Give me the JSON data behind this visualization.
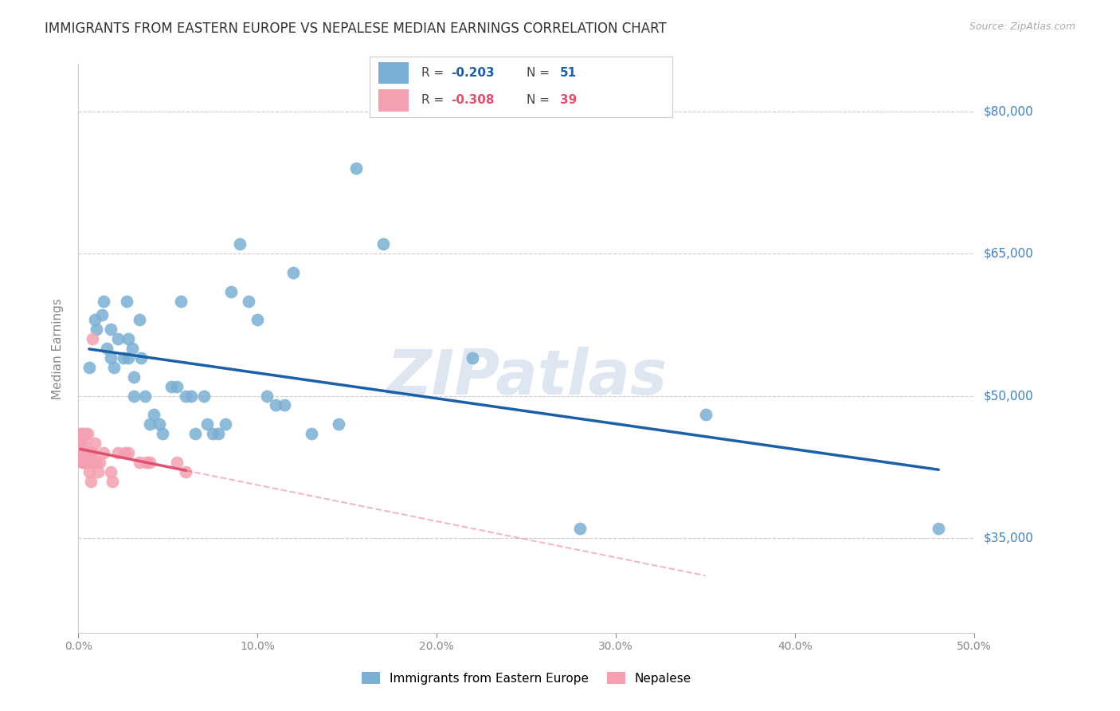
{
  "title": "IMMIGRANTS FROM EASTERN EUROPE VS NEPALESE MEDIAN EARNINGS CORRELATION CHART",
  "source": "Source: ZipAtlas.com",
  "ylabel": "Median Earnings",
  "xlim": [
    0.0,
    0.5
  ],
  "ylim": [
    25000,
    85000
  ],
  "yticks": [
    35000,
    50000,
    65000,
    80000
  ],
  "ytick_labels": [
    "$35,000",
    "$50,000",
    "$65,000",
    "$80,000"
  ],
  "xticks": [
    0.0,
    0.1,
    0.2,
    0.3,
    0.4,
    0.5
  ],
  "blue_R": "-0.203",
  "blue_N": "51",
  "pink_R": "-0.308",
  "pink_N": "39",
  "legend_label_blue": "Immigrants from Eastern Europe",
  "legend_label_pink": "Nepalese",
  "blue_color": "#7bafd4",
  "pink_color": "#f4a0b0",
  "blue_line_color": "#1a5fa8",
  "pink_line_color": "#e05070",
  "watermark": "ZIPatlas",
  "blue_x": [
    0.006,
    0.009,
    0.01,
    0.013,
    0.014,
    0.016,
    0.018,
    0.018,
    0.02,
    0.022,
    0.025,
    0.027,
    0.028,
    0.028,
    0.03,
    0.031,
    0.031,
    0.034,
    0.035,
    0.037,
    0.04,
    0.042,
    0.045,
    0.047,
    0.052,
    0.055,
    0.057,
    0.06,
    0.063,
    0.065,
    0.07,
    0.072,
    0.075,
    0.078,
    0.082,
    0.085,
    0.09,
    0.095,
    0.1,
    0.105,
    0.11,
    0.115,
    0.12,
    0.13,
    0.145,
    0.155,
    0.17,
    0.22,
    0.28,
    0.35,
    0.48
  ],
  "blue_y": [
    53000,
    58000,
    57000,
    58500,
    60000,
    55000,
    54000,
    57000,
    53000,
    56000,
    54000,
    60000,
    54000,
    56000,
    55000,
    50000,
    52000,
    58000,
    54000,
    50000,
    47000,
    48000,
    47000,
    46000,
    51000,
    51000,
    60000,
    50000,
    50000,
    46000,
    50000,
    47000,
    46000,
    46000,
    47000,
    61000,
    66000,
    60000,
    58000,
    50000,
    49000,
    49000,
    63000,
    46000,
    47000,
    74000,
    66000,
    54000,
    36000,
    48000,
    36000
  ],
  "pink_x": [
    0.001,
    0.001,
    0.001,
    0.002,
    0.002,
    0.002,
    0.003,
    0.003,
    0.003,
    0.004,
    0.004,
    0.004,
    0.005,
    0.005,
    0.005,
    0.005,
    0.006,
    0.006,
    0.006,
    0.007,
    0.007,
    0.008,
    0.008,
    0.009,
    0.009,
    0.01,
    0.011,
    0.012,
    0.014,
    0.018,
    0.019,
    0.022,
    0.026,
    0.028,
    0.034,
    0.038,
    0.04,
    0.055,
    0.06
  ],
  "pink_y": [
    44000,
    45000,
    46000,
    44000,
    43000,
    46000,
    44000,
    45000,
    43000,
    44000,
    46000,
    43000,
    43000,
    44000,
    44000,
    46000,
    44000,
    43000,
    42000,
    41000,
    44000,
    56000,
    44000,
    43000,
    45000,
    43000,
    42000,
    43000,
    44000,
    42000,
    41000,
    44000,
    44000,
    44000,
    43000,
    43000,
    43000,
    43000,
    42000
  ],
  "bg_color": "#ffffff",
  "grid_color": "#cccccc",
  "axis_color": "#cccccc",
  "title_color": "#333333",
  "source_color": "#aaaaaa",
  "right_label_color": "#3b82c4",
  "tick_label_color": "#888888"
}
